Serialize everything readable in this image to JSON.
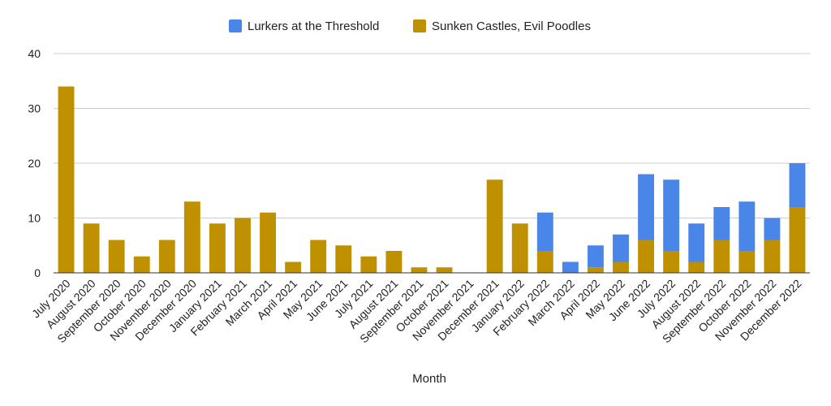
{
  "chart_data": {
    "type": "bar",
    "stacked": true,
    "xlabel": "Month",
    "ylabel": "",
    "ylim": [
      0,
      40
    ],
    "yticks": [
      0,
      10,
      20,
      30,
      40
    ],
    "grid": true,
    "legend_position": "top",
    "categories": [
      "July 2020",
      "August 2020",
      "September 2020",
      "October 2020",
      "November 2020",
      "December 2020",
      "January 2021",
      "February 2021",
      "March 2021",
      "April 2021",
      "May 2021",
      "June 2021",
      "July 2021",
      "August 2021",
      "September 2021",
      "October 2021",
      "November 2021",
      "December 2021",
      "January 2022",
      "February 2022",
      "March 2022",
      "April 2022",
      "May 2022",
      "June 2022",
      "July 2022",
      "August 2022",
      "September 2022",
      "October 2022",
      "November 2022",
      "December 2022"
    ],
    "series": [
      {
        "name": "Sunken Castles, Evil Poodles",
        "color": "#bf9000",
        "values": [
          34,
          9,
          6,
          3,
          6,
          13,
          9,
          10,
          11,
          2,
          6,
          5,
          3,
          4,
          1,
          1,
          0,
          17,
          9,
          4,
          0,
          1,
          2,
          6,
          4,
          2,
          6,
          4,
          6,
          12
        ]
      },
      {
        "name": "Lurkers at the Threshold",
        "color": "#4a86e8",
        "values": [
          0,
          0,
          0,
          0,
          0,
          0,
          0,
          0,
          0,
          0,
          0,
          0,
          0,
          0,
          0,
          0,
          0,
          0,
          0,
          7,
          2,
          4,
          5,
          12,
          13,
          7,
          6,
          9,
          4,
          8
        ]
      }
    ],
    "legend": [
      {
        "name": "Lurkers at the Threshold",
        "color": "#4a86e8"
      },
      {
        "name": "Sunken Castles, Evil Poodles",
        "color": "#bf9000"
      }
    ]
  }
}
